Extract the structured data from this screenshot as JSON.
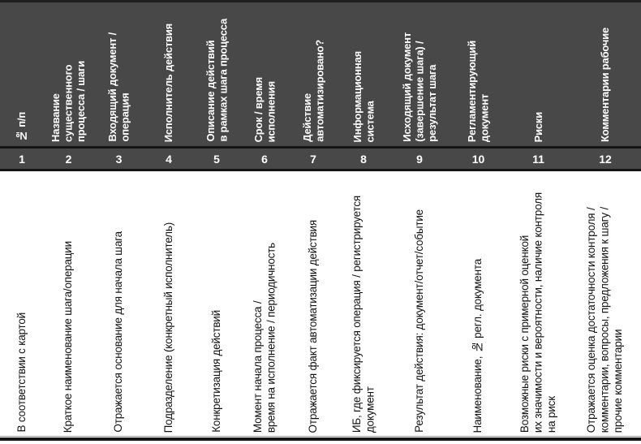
{
  "table": {
    "columns": [
      {
        "num": "1",
        "header": "№ п/п",
        "description": "В соответствии с картой"
      },
      {
        "num": "2",
        "header": "Название\nсущественного\nпроцесса / шаги",
        "description": "Краткое наименование шага/операции"
      },
      {
        "num": "3",
        "header": "Входящий документ /\nоперация",
        "description": "Отражается основание для начала шага"
      },
      {
        "num": "4",
        "header": "Исполнитель действия",
        "description": "Подразделение (конкретный исполнитель)"
      },
      {
        "num": "5",
        "header": "Описание действий\nв рамках шага процесса",
        "description": "Конкретизация действий"
      },
      {
        "num": "6",
        "header": "Срок / время\nисполнения",
        "description": "Момент начала процесса /\nвремя на исполнение / периодичность"
      },
      {
        "num": "7",
        "header": "Действие\nавтоматизировано?",
        "description": "Отражается факт автоматизации действия"
      },
      {
        "num": "8",
        "header": "Информационная\nсистема",
        "description": "ИБ, где фиксируется операция / регистрируется\nдокумент"
      },
      {
        "num": "9",
        "header": "Исходящий документ\n(завершение шага) /\nрезультат шага",
        "description": "Результат действия: документ/отчет/событие"
      },
      {
        "num": "10",
        "header": "Регламентирующий\nдокумент",
        "description": "Наименование, № регл. документа"
      },
      {
        "num": "11",
        "header": "Риски",
        "description": "Возможные риски с примерной оценкой\nих значимости и вероятности, наличие контроля\nна риск"
      },
      {
        "num": "12",
        "header": "Комментарии рабочие",
        "description": "Отражается оценка достаточности контроля /\nкомментарии, вопросы, предложения к шагу /\nпрочие комментарии"
      }
    ],
    "colors": {
      "header_bg": "#484848",
      "header_text": "#ffffff",
      "separator": "#151515",
      "body_text": "#111111",
      "page_bg": "#ffffff"
    }
  }
}
